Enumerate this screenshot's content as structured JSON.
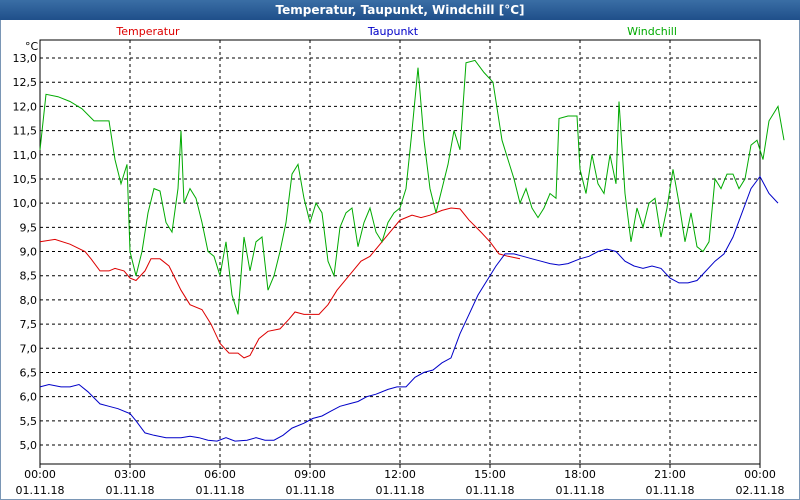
{
  "chart_data": {
    "type": "line",
    "title": "Temperatur, Taupunkt, Windchill [°C]",
    "ylabel": "°C",
    "ylim": [
      4.6,
      13.3
    ],
    "yticks": [
      "13,0",
      "12,5",
      "12,0",
      "11,5",
      "11,0",
      "10,5",
      "10,0",
      "9,5",
      "9,0",
      "8,5",
      "8,0",
      "7,5",
      "7,0",
      "6,5",
      "6,0",
      "5,5",
      "5,0"
    ],
    "xticks": [
      {
        "time": "00:00",
        "date": "01.11.18"
      },
      {
        "time": "03:00",
        "date": "01.11.18"
      },
      {
        "time": "06:00",
        "date": "01.11.18"
      },
      {
        "time": "09:00",
        "date": "01.11.18"
      },
      {
        "time": "12:00",
        "date": "01.11.18"
      },
      {
        "time": "15:00",
        "date": "01.11.18"
      },
      {
        "time": "18:00",
        "date": "01.11.18"
      },
      {
        "time": "21:00",
        "date": "01.11.18"
      },
      {
        "time": "00:00",
        "date": "02.11.18"
      }
    ],
    "grid": true,
    "legend_position": "top",
    "xlim_hours": [
      0,
      24
    ],
    "series": [
      {
        "name": "Temperatur",
        "color": "#dd0000",
        "points": [
          [
            0,
            9.2
          ],
          [
            0.5,
            9.25
          ],
          [
            1,
            9.15
          ],
          [
            1.5,
            9.0
          ],
          [
            1.7,
            8.85
          ],
          [
            2.0,
            8.6
          ],
          [
            2.3,
            8.6
          ],
          [
            2.5,
            8.65
          ],
          [
            2.8,
            8.6
          ],
          [
            3.0,
            8.45
          ],
          [
            3.2,
            8.4
          ],
          [
            3.5,
            8.6
          ],
          [
            3.7,
            8.85
          ],
          [
            4.0,
            8.85
          ],
          [
            4.3,
            8.7
          ],
          [
            4.7,
            8.2
          ],
          [
            5.0,
            7.9
          ],
          [
            5.4,
            7.8
          ],
          [
            5.7,
            7.5
          ],
          [
            6.0,
            7.1
          ],
          [
            6.3,
            6.9
          ],
          [
            6.6,
            6.9
          ],
          [
            6.8,
            6.8
          ],
          [
            7.0,
            6.85
          ],
          [
            7.3,
            7.2
          ],
          [
            7.6,
            7.35
          ],
          [
            8.0,
            7.4
          ],
          [
            8.3,
            7.6
          ],
          [
            8.5,
            7.75
          ],
          [
            8.8,
            7.7
          ],
          [
            9.3,
            7.7
          ],
          [
            9.6,
            7.9
          ],
          [
            9.9,
            8.2
          ],
          [
            10.3,
            8.5
          ],
          [
            10.7,
            8.8
          ],
          [
            11.0,
            8.9
          ],
          [
            11.4,
            9.2
          ],
          [
            11.8,
            9.5
          ],
          [
            12.0,
            9.65
          ],
          [
            12.4,
            9.75
          ],
          [
            12.7,
            9.7
          ],
          [
            13.0,
            9.75
          ],
          [
            13.4,
            9.85
          ],
          [
            13.7,
            9.9
          ],
          [
            14.0,
            9.88
          ],
          [
            14.3,
            9.65
          ],
          [
            14.7,
            9.4
          ],
          [
            15.0,
            9.2
          ],
          [
            15.3,
            8.95
          ],
          [
            15.6,
            8.9
          ],
          [
            16.0,
            8.85
          ]
        ]
      },
      {
        "name": "Taupunkt",
        "color": "#0000c8",
        "points": [
          [
            0,
            6.2
          ],
          [
            0.3,
            6.25
          ],
          [
            0.7,
            6.2
          ],
          [
            1.0,
            6.2
          ],
          [
            1.3,
            6.25
          ],
          [
            1.6,
            6.1
          ],
          [
            2.0,
            5.85
          ],
          [
            2.3,
            5.8
          ],
          [
            2.6,
            5.75
          ],
          [
            3.0,
            5.65
          ],
          [
            3.2,
            5.5
          ],
          [
            3.5,
            5.25
          ],
          [
            3.8,
            5.2
          ],
          [
            4.2,
            5.15
          ],
          [
            4.7,
            5.15
          ],
          [
            5.0,
            5.18
          ],
          [
            5.3,
            5.15
          ],
          [
            5.6,
            5.1
          ],
          [
            5.9,
            5.08
          ],
          [
            6.2,
            5.15
          ],
          [
            6.5,
            5.08
          ],
          [
            6.9,
            5.1
          ],
          [
            7.2,
            5.15
          ],
          [
            7.5,
            5.1
          ],
          [
            7.8,
            5.1
          ],
          [
            8.1,
            5.2
          ],
          [
            8.4,
            5.35
          ],
          [
            8.8,
            5.45
          ],
          [
            9.1,
            5.55
          ],
          [
            9.4,
            5.6
          ],
          [
            9.7,
            5.7
          ],
          [
            10.0,
            5.8
          ],
          [
            10.3,
            5.85
          ],
          [
            10.6,
            5.9
          ],
          [
            10.9,
            6.0
          ],
          [
            11.2,
            6.05
          ],
          [
            11.6,
            6.15
          ],
          [
            11.9,
            6.2
          ],
          [
            12.2,
            6.2
          ],
          [
            12.5,
            6.4
          ],
          [
            12.8,
            6.5
          ],
          [
            13.1,
            6.55
          ],
          [
            13.4,
            6.7
          ],
          [
            13.7,
            6.8
          ],
          [
            14.0,
            7.3
          ],
          [
            14.3,
            7.7
          ],
          [
            14.6,
            8.1
          ],
          [
            14.9,
            8.4
          ],
          [
            15.2,
            8.7
          ],
          [
            15.5,
            8.95
          ],
          [
            15.8,
            8.95
          ],
          [
            16.1,
            8.9
          ],
          [
            16.4,
            8.85
          ],
          [
            16.7,
            8.8
          ],
          [
            17.0,
            8.75
          ],
          [
            17.3,
            8.72
          ],
          [
            17.6,
            8.75
          ],
          [
            18.0,
            8.85
          ],
          [
            18.3,
            8.9
          ],
          [
            18.6,
            9.0
          ],
          [
            18.9,
            9.05
          ],
          [
            19.2,
            9.0
          ],
          [
            19.5,
            8.8
          ],
          [
            19.8,
            8.7
          ],
          [
            20.1,
            8.65
          ],
          [
            20.4,
            8.7
          ],
          [
            20.7,
            8.65
          ],
          [
            21.0,
            8.45
          ],
          [
            21.3,
            8.35
          ],
          [
            21.6,
            8.35
          ],
          [
            21.9,
            8.4
          ],
          [
            22.2,
            8.6
          ],
          [
            22.5,
            8.8
          ],
          [
            22.8,
            8.95
          ],
          [
            23.1,
            9.3
          ],
          [
            23.4,
            9.8
          ],
          [
            23.7,
            10.3
          ],
          [
            24.0,
            10.55
          ],
          [
            24.3,
            10.2
          ],
          [
            24.6,
            10.0
          ]
        ]
      },
      {
        "name": "Windchill",
        "color": "#00aa00",
        "points": [
          [
            0,
            11.1
          ],
          [
            0.2,
            12.25
          ],
          [
            0.6,
            12.2
          ],
          [
            1.0,
            12.1
          ],
          [
            1.4,
            11.95
          ],
          [
            1.8,
            11.7
          ],
          [
            2.3,
            11.7
          ],
          [
            2.5,
            10.9
          ],
          [
            2.7,
            10.4
          ],
          [
            2.9,
            10.8
          ],
          [
            3.0,
            9.0
          ],
          [
            3.2,
            8.5
          ],
          [
            3.4,
            9.0
          ],
          [
            3.6,
            9.8
          ],
          [
            3.8,
            10.3
          ],
          [
            4.0,
            10.25
          ],
          [
            4.2,
            9.6
          ],
          [
            4.4,
            9.4
          ],
          [
            4.6,
            10.3
          ],
          [
            4.7,
            11.5
          ],
          [
            4.8,
            10.0
          ],
          [
            5.0,
            10.3
          ],
          [
            5.2,
            10.1
          ],
          [
            5.4,
            9.6
          ],
          [
            5.6,
            9.0
          ],
          [
            5.8,
            8.9
          ],
          [
            6.0,
            8.5
          ],
          [
            6.2,
            9.2
          ],
          [
            6.4,
            8.1
          ],
          [
            6.6,
            7.7
          ],
          [
            6.8,
            9.3
          ],
          [
            7.0,
            8.6
          ],
          [
            7.2,
            9.2
          ],
          [
            7.4,
            9.3
          ],
          [
            7.6,
            8.2
          ],
          [
            7.8,
            8.5
          ],
          [
            8.0,
            9.0
          ],
          [
            8.2,
            9.6
          ],
          [
            8.4,
            10.6
          ],
          [
            8.6,
            10.8
          ],
          [
            8.8,
            10.1
          ],
          [
            9.0,
            9.6
          ],
          [
            9.2,
            10.0
          ],
          [
            9.4,
            9.8
          ],
          [
            9.6,
            8.8
          ],
          [
            9.8,
            8.5
          ],
          [
            10.0,
            9.5
          ],
          [
            10.2,
            9.8
          ],
          [
            10.4,
            9.9
          ],
          [
            10.6,
            9.1
          ],
          [
            10.8,
            9.6
          ],
          [
            11.0,
            9.9
          ],
          [
            11.2,
            9.4
          ],
          [
            11.4,
            9.2
          ],
          [
            11.6,
            9.6
          ],
          [
            11.8,
            9.8
          ],
          [
            12.0,
            9.9
          ],
          [
            12.2,
            10.3
          ],
          [
            12.4,
            11.5
          ],
          [
            12.6,
            12.8
          ],
          [
            12.8,
            11.3
          ],
          [
            13.0,
            10.3
          ],
          [
            13.2,
            9.8
          ],
          [
            13.4,
            10.3
          ],
          [
            13.6,
            10.8
          ],
          [
            13.8,
            11.5
          ],
          [
            14.0,
            11.1
          ],
          [
            14.2,
            12.9
          ],
          [
            14.5,
            12.95
          ],
          [
            14.8,
            12.7
          ],
          [
            15.1,
            12.5
          ],
          [
            15.4,
            11.3
          ],
          [
            15.6,
            10.9
          ],
          [
            15.8,
            10.5
          ],
          [
            16.0,
            10.0
          ],
          [
            16.2,
            10.3
          ],
          [
            16.4,
            9.9
          ],
          [
            16.6,
            9.7
          ],
          [
            16.8,
            9.9
          ],
          [
            17.0,
            10.2
          ],
          [
            17.2,
            10.1
          ],
          [
            17.3,
            11.75
          ],
          [
            17.6,
            11.8
          ],
          [
            17.9,
            11.8
          ],
          [
            18.0,
            10.7
          ],
          [
            18.2,
            10.2
          ],
          [
            18.4,
            11.0
          ],
          [
            18.6,
            10.4
          ],
          [
            18.8,
            10.2
          ],
          [
            19.0,
            11.0
          ],
          [
            19.2,
            10.4
          ],
          [
            19.3,
            12.1
          ],
          [
            19.5,
            10.2
          ],
          [
            19.7,
            9.2
          ],
          [
            19.9,
            9.9
          ],
          [
            20.1,
            9.5
          ],
          [
            20.3,
            10.0
          ],
          [
            20.5,
            10.1
          ],
          [
            20.7,
            9.3
          ],
          [
            20.9,
            9.9
          ],
          [
            21.1,
            10.7
          ],
          [
            21.3,
            10.0
          ],
          [
            21.5,
            9.2
          ],
          [
            21.7,
            9.8
          ],
          [
            21.9,
            9.1
          ],
          [
            22.1,
            9.0
          ],
          [
            22.3,
            9.2
          ],
          [
            22.5,
            10.5
          ],
          [
            22.7,
            10.3
          ],
          [
            22.9,
            10.6
          ],
          [
            23.1,
            10.6
          ],
          [
            23.3,
            10.3
          ],
          [
            23.5,
            10.5
          ],
          [
            23.7,
            11.2
          ],
          [
            23.9,
            11.3
          ],
          [
            24.1,
            10.9
          ],
          [
            24.3,
            11.7
          ],
          [
            24.6,
            12.0
          ],
          [
            24.8,
            11.3
          ]
        ]
      }
    ]
  }
}
